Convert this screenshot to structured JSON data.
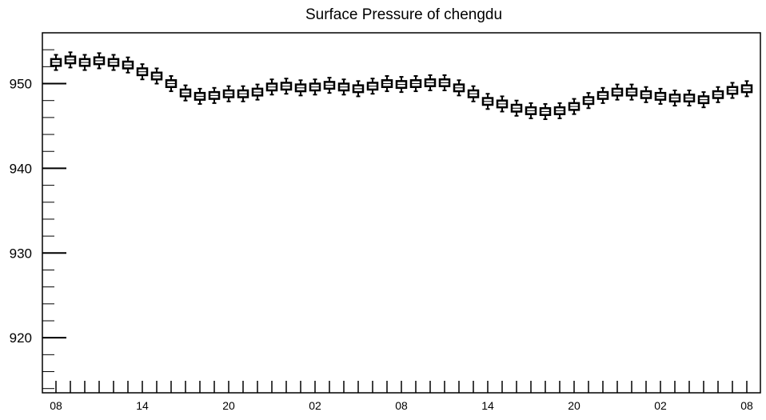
{
  "chart_data": {
    "type": "box",
    "title": "Surface Pressure of chengdu",
    "xlabel": "",
    "ylabel": "",
    "ylim": [
      913.5,
      956
    ],
    "y_ticks": [
      920,
      930,
      940,
      950
    ],
    "x_tick_labels": [
      "08",
      "14",
      "20",
      "02",
      "08",
      "14",
      "20",
      "02",
      "08"
    ],
    "grid": false,
    "legend": "none",
    "box_color": "#000000",
    "fill_color": "#ffffff",
    "series": [
      {
        "median": [
          952.5,
          952.8,
          952.5,
          952.7,
          952.5,
          952.2,
          951.4,
          950.9,
          950.0,
          948.9,
          948.5,
          948.6,
          948.8,
          948.8,
          949.0,
          949.6,
          949.7,
          949.5,
          949.6,
          949.8,
          949.6,
          949.4,
          949.7,
          950.0,
          949.9,
          950.0,
          950.1,
          950.1,
          949.5,
          948.8,
          947.9,
          947.6,
          947.1,
          946.8,
          946.7,
          946.8,
          947.3,
          948.0,
          948.6,
          949.0,
          949.0,
          948.7,
          948.5,
          948.3,
          948.3,
          948.1,
          948.7,
          949.2,
          949.4
        ],
        "q1": [
          952.1,
          952.4,
          952.1,
          952.3,
          952.1,
          951.8,
          951.0,
          950.5,
          949.6,
          948.5,
          948.1,
          948.2,
          948.4,
          948.4,
          948.6,
          949.2,
          949.3,
          949.1,
          949.2,
          949.4,
          949.2,
          949.0,
          949.3,
          949.6,
          949.5,
          949.6,
          949.7,
          949.7,
          949.1,
          948.4,
          947.5,
          947.2,
          946.7,
          946.4,
          946.3,
          946.4,
          946.9,
          947.6,
          948.2,
          948.6,
          948.6,
          948.3,
          948.1,
          947.9,
          947.9,
          947.7,
          948.3,
          948.8,
          949.0
        ],
        "q3": [
          952.9,
          953.2,
          952.9,
          953.1,
          952.9,
          952.6,
          951.8,
          951.3,
          950.4,
          949.3,
          948.9,
          949.0,
          949.2,
          949.2,
          949.4,
          950.0,
          950.1,
          949.9,
          950.0,
          950.2,
          950.0,
          949.8,
          950.1,
          950.4,
          950.3,
          950.4,
          950.5,
          950.5,
          949.9,
          949.2,
          948.3,
          948.0,
          947.5,
          947.2,
          947.1,
          947.2,
          947.7,
          948.4,
          949.0,
          949.4,
          949.4,
          949.1,
          948.9,
          948.7,
          948.7,
          948.5,
          949.1,
          949.6,
          949.8
        ],
        "whisker_low": [
          951.6,
          951.9,
          951.6,
          951.8,
          951.6,
          951.3,
          950.5,
          950.0,
          949.1,
          948.0,
          947.6,
          947.7,
          947.9,
          947.9,
          948.1,
          948.7,
          948.8,
          948.6,
          948.7,
          948.9,
          948.7,
          948.5,
          948.8,
          949.1,
          949.0,
          949.1,
          949.2,
          949.2,
          948.6,
          947.9,
          947.0,
          946.7,
          946.2,
          945.9,
          945.8,
          945.9,
          946.4,
          947.1,
          947.7,
          948.1,
          948.1,
          947.8,
          947.6,
          947.4,
          947.4,
          947.2,
          947.8,
          948.3,
          948.5
        ],
        "whisker_high": [
          953.4,
          953.7,
          953.4,
          953.6,
          953.4,
          953.1,
          952.3,
          951.8,
          950.9,
          949.8,
          949.4,
          949.5,
          949.7,
          949.7,
          949.9,
          950.5,
          950.6,
          950.4,
          950.5,
          950.7,
          950.5,
          950.3,
          950.6,
          950.9,
          950.8,
          950.9,
          951.0,
          951.0,
          950.4,
          949.7,
          948.8,
          948.5,
          948.0,
          947.7,
          947.6,
          947.7,
          948.2,
          948.9,
          949.5,
          949.9,
          949.9,
          949.6,
          949.4,
          949.2,
          949.2,
          949.0,
          949.6,
          950.1,
          950.3
        ]
      }
    ]
  }
}
